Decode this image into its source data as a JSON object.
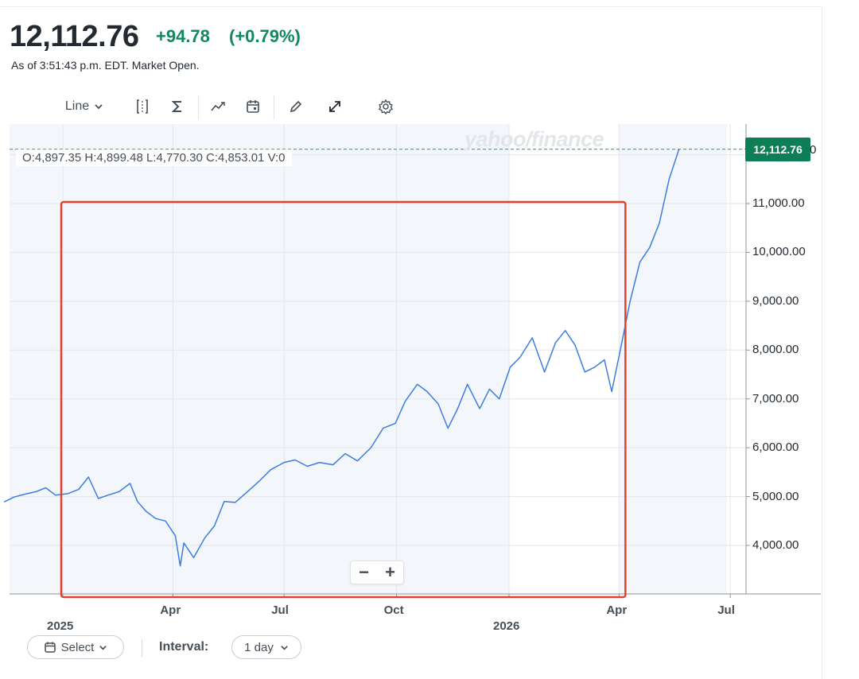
{
  "quote": {
    "price": "12,112.76",
    "change": "+94.78",
    "change_pct": "(+0.79%)",
    "as_of": "As of 3:51:43 p.m. EDT. Market Open."
  },
  "toolbar": {
    "chart_type_label": "Line",
    "icons": [
      "compare-icon",
      "indicators-icon",
      "trend-icon",
      "calendar-icon",
      "draw-icon",
      "fullscreen-icon",
      "settings-icon"
    ]
  },
  "ohlc": {
    "text": "O:4,897.35   H:4,899.48   L:4,770.30   C:4,853.01   V:0"
  },
  "watermark": "yahoo/finance",
  "last_price_badge": "12,112.76",
  "badge_tail": "0",
  "zoom": {
    "minus": "−",
    "plus": "+"
  },
  "controls": {
    "select_label": "Select",
    "interval_label": "Interval:",
    "interval_value": "1 day"
  },
  "colors": {
    "line": "#3c7ee0",
    "positive": "#0e8a5c",
    "badge": "#0e7e56",
    "highlight_box": "#e2412e",
    "shade": "#f3f6fa"
  },
  "chart_data": {
    "type": "line",
    "title": "",
    "xlabel": "",
    "ylabel": "",
    "ylim": [
      3000,
      12700
    ],
    "y_ticks": [
      "4,000.00",
      "5,000.00",
      "6,000.00",
      "7,000.00",
      "8,000.00",
      "9,000.00",
      "10,000.00",
      "11,000.00"
    ],
    "x_ticks": [
      {
        "label": "2025",
        "date": "2025-01-01"
      },
      {
        "label": "Apr",
        "date": "2025-04-01"
      },
      {
        "label": "Jul",
        "date": "2025-07-01"
      },
      {
        "label": "Oct",
        "date": "2025-10-01"
      },
      {
        "label": "2026",
        "date": "2026-01-01"
      },
      {
        "label": "Apr",
        "date": "2026-04-01"
      },
      {
        "label": "Jul",
        "date": "2026-07-01"
      }
    ],
    "x_range": [
      "2024-11-14",
      "2026-07-21"
    ],
    "last_value": 12112.76,
    "highlight_range": [
      "2025-01-01",
      "2026-04-01"
    ],
    "grid": true,
    "series": [
      {
        "x": [
          "2024-11-14",
          "2024-11-22",
          "2024-12-01",
          "2024-12-10",
          "2024-12-18",
          "2024-12-26",
          "2025-01-05",
          "2025-01-14",
          "2025-01-22",
          "2025-01-30",
          "2025-02-07",
          "2025-02-16",
          "2025-02-25",
          "2025-03-03",
          "2025-03-10",
          "2025-03-18",
          "2025-03-26",
          "2025-04-03",
          "2025-04-07",
          "2025-04-10",
          "2025-04-18",
          "2025-04-27",
          "2025-05-05",
          "2025-05-13",
          "2025-05-22",
          "2025-06-01",
          "2025-06-10",
          "2025-06-20",
          "2025-07-01",
          "2025-07-10",
          "2025-07-20",
          "2025-07-30",
          "2025-08-10",
          "2025-08-20",
          "2025-08-30",
          "2025-09-10",
          "2025-09-20",
          "2025-09-30",
          "2025-10-08",
          "2025-10-18",
          "2025-10-26",
          "2025-11-04",
          "2025-11-12",
          "2025-11-20",
          "2025-11-28",
          "2025-12-08",
          "2025-12-16",
          "2025-12-24",
          "2026-01-02",
          "2026-01-10",
          "2026-01-20",
          "2026-01-30",
          "2026-02-08",
          "2026-02-16",
          "2026-02-24",
          "2026-03-04",
          "2026-03-12",
          "2026-03-20",
          "2026-03-26",
          "2026-04-02",
          "2026-04-10",
          "2026-04-18",
          "2026-04-26",
          "2026-05-04",
          "2026-05-12",
          "2026-05-20"
        ],
        "values": [
          4890,
          4990,
          5050,
          5100,
          5180,
          5030,
          5060,
          5150,
          5400,
          4960,
          5030,
          5100,
          5270,
          4900,
          4700,
          4550,
          4500,
          4200,
          3580,
          4050,
          3750,
          4150,
          4400,
          4900,
          4880,
          5100,
          5300,
          5550,
          5700,
          5750,
          5620,
          5700,
          5650,
          5880,
          5730,
          6000,
          6400,
          6500,
          6950,
          7300,
          7150,
          6900,
          6400,
          6800,
          7300,
          6800,
          7200,
          7000,
          7650,
          7850,
          8250,
          7550,
          8150,
          8400,
          8100,
          7550,
          7650,
          7800,
          7150,
          8000,
          9000,
          9800,
          10100,
          10600,
          11500,
          12110
        ]
      }
    ]
  }
}
